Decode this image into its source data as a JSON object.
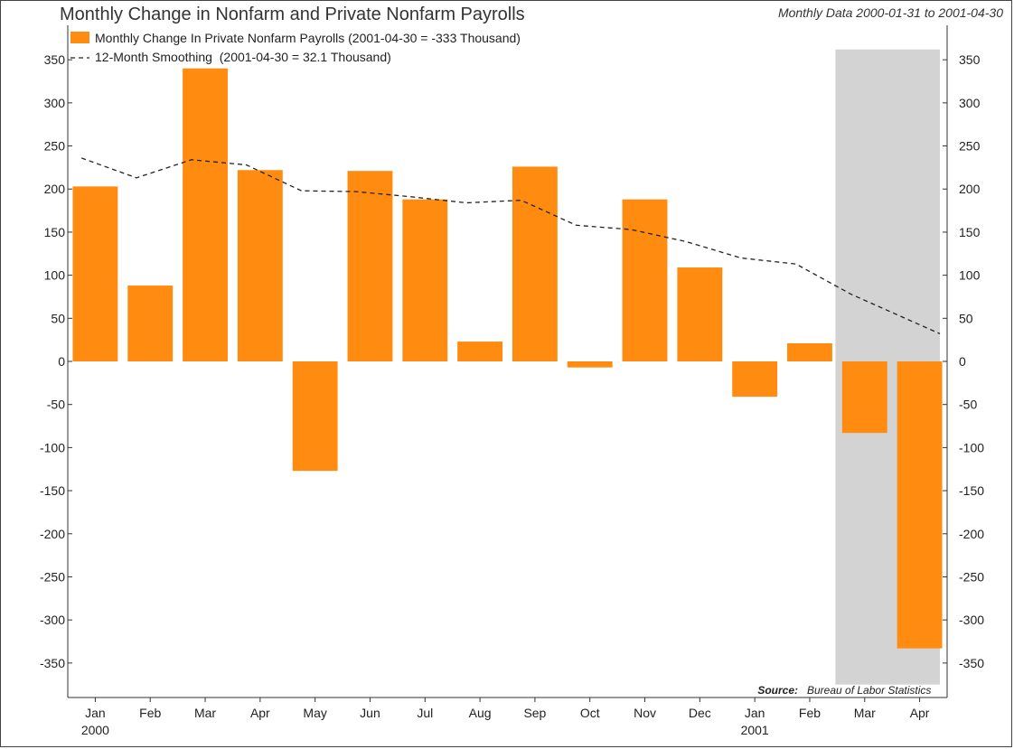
{
  "header": {
    "title": "Monthly Change in Nonfarm and Private Nonfarm Payrolls",
    "subtitle": "Monthly Data 2000-01-31 to 2001-04-30"
  },
  "source": {
    "label": "Source:",
    "text": "Bureau of Labor Statistics"
  },
  "colors": {
    "bar": "#ff8c10",
    "line": "#222222",
    "recession": "#d3d3d3",
    "axis": "#333333"
  },
  "chart_data": {
    "type": "bar",
    "categories": [
      "Jan",
      "Feb",
      "Mar",
      "Apr",
      "May",
      "Jun",
      "Jul",
      "Aug",
      "Sep",
      "Oct",
      "Nov",
      "Dec",
      "Jan",
      "Feb",
      "Mar",
      "Apr"
    ],
    "year_labels": [
      "2000",
      "",
      "",
      "",
      "",
      "",
      "",
      "",
      "",
      "",
      "",
      "",
      "2001",
      "",
      "",
      ""
    ],
    "series": [
      {
        "name": "Monthly Change In Private Nonfarm Payrolls (2001-04-30 = -333 Thousand)",
        "type": "bar",
        "values": [
          203,
          88,
          340,
          222,
          -127,
          221,
          188,
          23,
          226,
          -7,
          188,
          109,
          -41,
          21,
          -83,
          -333
        ]
      },
      {
        "name": "12-Month Smoothing  (2001-04-30 = 32.1 Thousand)",
        "type": "line",
        "style": "dashed",
        "values": [
          236,
          213,
          234,
          228,
          198,
          197,
          191,
          184,
          187,
          158,
          153,
          139,
          120,
          113,
          78,
          32.1
        ]
      }
    ],
    "shaded_region": {
      "from": "Mar 2001",
      "to": "Apr 2001",
      "label": ""
    },
    "yticks": [
      350,
      300,
      250,
      200,
      150,
      100,
      50,
      0,
      -50,
      -100,
      -150,
      -200,
      -250,
      -300,
      -350
    ],
    "ylim": [
      -390,
      390
    ],
    "xlabel": "",
    "ylabel": "",
    "legend_position": "top-left",
    "grid": false
  }
}
